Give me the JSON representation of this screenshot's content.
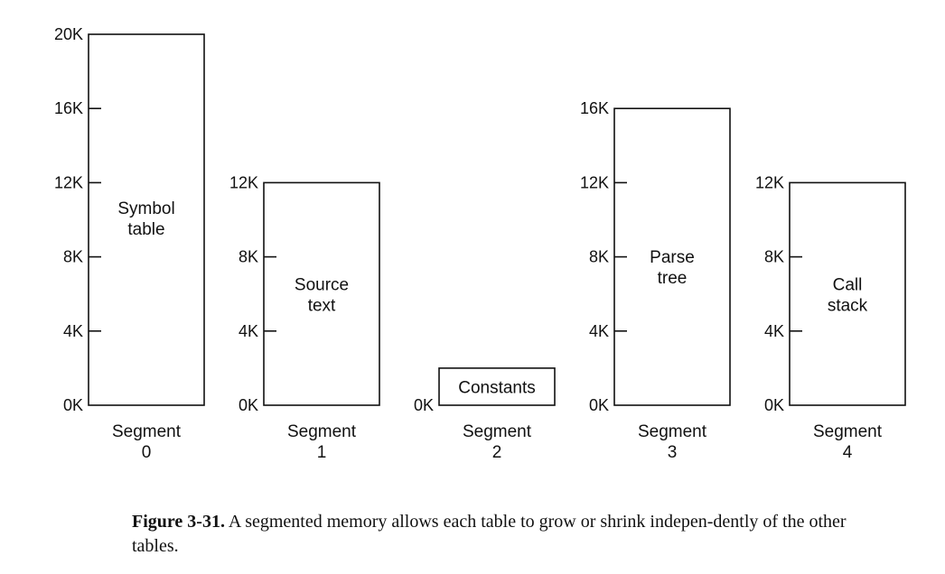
{
  "diagram": {
    "segments": [
      {
        "name": "Segment",
        "number": "0",
        "content": [
          "Symbol",
          "table"
        ],
        "size_k": 20,
        "ticks": [
          "20K",
          "16K",
          "12K",
          "8K",
          "4K",
          "0K"
        ]
      },
      {
        "name": "Segment",
        "number": "1",
        "content": [
          "Source",
          "text"
        ],
        "size_k": 12,
        "ticks": [
          "12K",
          "8K",
          "4K",
          "0K"
        ]
      },
      {
        "name": "Segment",
        "number": "2",
        "content": [
          "Constants"
        ],
        "size_k": 2,
        "ticks": [
          "0K"
        ]
      },
      {
        "name": "Segment",
        "number": "3",
        "content": [
          "Parse",
          "tree"
        ],
        "size_k": 16,
        "ticks": [
          "16K",
          "12K",
          "8K",
          "4K",
          "0K"
        ]
      },
      {
        "name": "Segment",
        "number": "4",
        "content": [
          "Call",
          "stack"
        ],
        "size_k": 12,
        "ticks": [
          "12K",
          "8K",
          "4K",
          "0K"
        ]
      }
    ]
  },
  "caption": {
    "label": "Figure 3-31.",
    "text": "A segmented memory allows each table to grow or shrink indepen-dently of the other tables."
  }
}
